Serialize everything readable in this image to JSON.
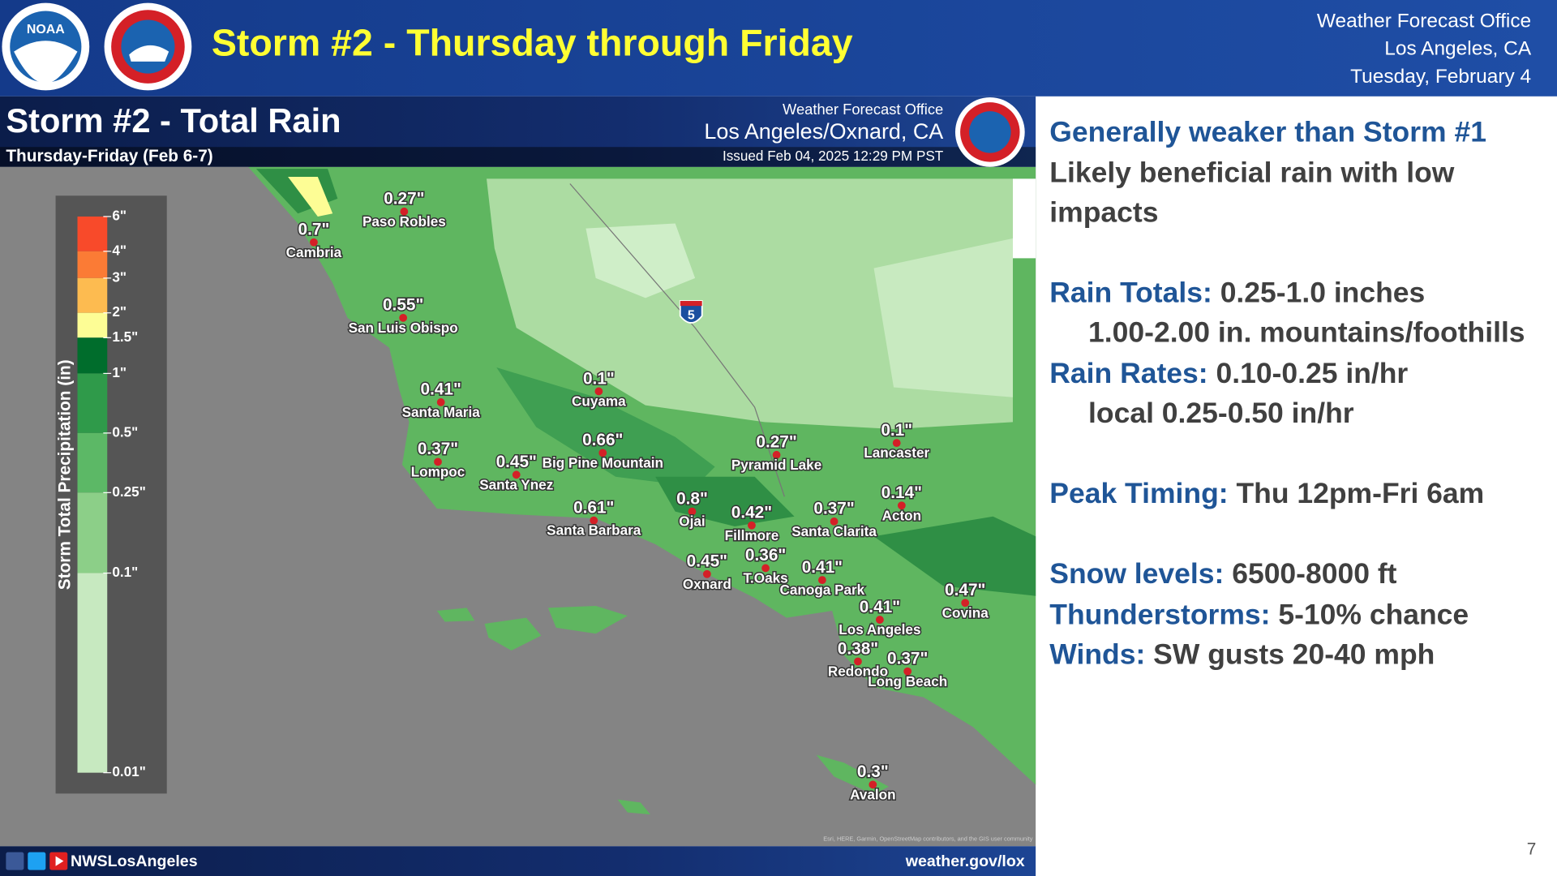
{
  "header": {
    "logo_text": "NOAA",
    "title": "Storm #2 - Thursday through Friday",
    "office": [
      "Weather Forecast Office",
      "Los Angeles, CA",
      "Tuesday, February 4"
    ]
  },
  "map": {
    "title": "Storm #2 - Total Rain",
    "subtitle": "Thursday-Friday (Feb 6-7)",
    "office": "Weather Forecast Office",
    "location": "Los Angeles/Oxnard, CA",
    "issued": "Issued Feb 04, 2025 12:29 PM PST",
    "legend": {
      "title": "Storm Total Precipitation (in)",
      "labels": [
        "6\"",
        "4\"",
        "3\"",
        "2\"",
        "1.5\"",
        "1\"",
        "0.5\"",
        "0.25\"",
        "0.1\"",
        "0.01\""
      ]
    },
    "interstate": "5",
    "cities": [
      {
        "value": "0.27\"",
        "name": "Paso Robles"
      },
      {
        "value": "0.7\"",
        "name": "Cambria"
      },
      {
        "value": "0.55\"",
        "name": "San Luis Obispo"
      },
      {
        "value": "0.41\"",
        "name": "Santa Maria"
      },
      {
        "value": "0.1\"",
        "name": "Cuyama"
      },
      {
        "value": "0.37\"",
        "name": "Lompoc"
      },
      {
        "value": "0.45\"",
        "name": "Santa Ynez"
      },
      {
        "value": "0.66\"",
        "name": "Big Pine Mountain"
      },
      {
        "value": "0.61\"",
        "name": "Santa Barbara"
      },
      {
        "value": "0.8\"",
        "name": "Ojai"
      },
      {
        "value": "0.42\"",
        "name": "Fillmore"
      },
      {
        "value": "0.27\"",
        "name": "Pyramid Lake"
      },
      {
        "value": "0.1\"",
        "name": "Lancaster"
      },
      {
        "value": "0.14\"",
        "name": "Acton"
      },
      {
        "value": "0.37\"",
        "name": "Santa Clarita"
      },
      {
        "value": "0.45\"",
        "name": "Oxnard"
      },
      {
        "value": "0.36\"",
        "name": "T.Oaks"
      },
      {
        "value": "0.41\"",
        "name": "Canoga Park"
      },
      {
        "value": "0.47\"",
        "name": "Covina"
      },
      {
        "value": "0.41\"",
        "name": "Los Angeles"
      },
      {
        "value": "0.38\"",
        "name": "Redondo"
      },
      {
        "value": "0.37\"",
        "name": "Long Beach"
      },
      {
        "value": "0.3\"",
        "name": "Avalon"
      }
    ],
    "attribution": "Esri, HERE, Garmin, OpenStreetMap contributors, and the GIS user community"
  },
  "text": [
    {
      "label": "Generally weaker than Storm #1"
    },
    {
      "text": "Likely beneficial rain with low"
    },
    {
      "text": "impacts"
    },
    {
      "label": "Rain Totals:",
      "text": "0.25-1.0 inches"
    },
    {
      "text": "1.00-2.00 in. mountains/foothills"
    },
    {
      "label": "Rain Rates:",
      "text": "0.10-0.25 in/hr"
    },
    {
      "text": "local 0.25-0.50 in/hr"
    },
    {
      "label": "Peak Timing:",
      "text": "Thu 12pm-Fri 6am"
    },
    {
      "label": "Snow levels:",
      "text": "6500-8000 ft"
    },
    {
      "label": "Thunderstorms:",
      "text": "5-10% chance"
    },
    {
      "label": "Winds:",
      "text": "SW gusts 20-40 mph"
    }
  ],
  "footer": {
    "social": "NWSLosAngeles",
    "url": "weather.gov/lox"
  },
  "page_number": "7"
}
